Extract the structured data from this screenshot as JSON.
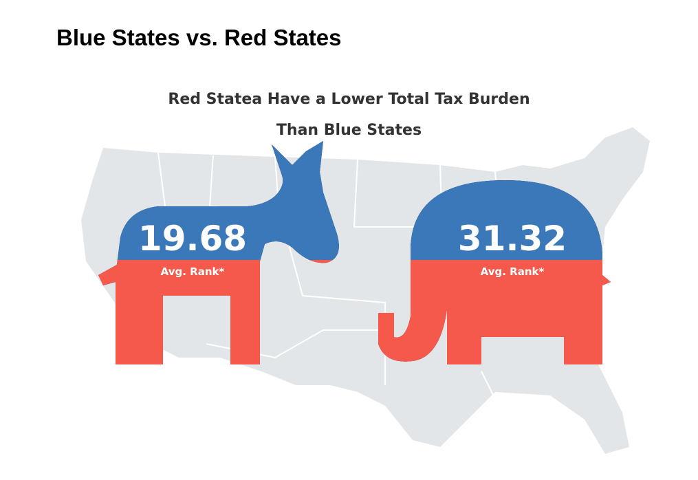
{
  "page": {
    "heading": "Blue States vs. Red States"
  },
  "infographic": {
    "title_line1": "Red Statea Have a Lower Total Tax Burden",
    "title_line2": "Than Blue States",
    "blue_states": {
      "value": "19.68",
      "label": "Avg. Rank*",
      "party_icon": "donkey-icon"
    },
    "red_states": {
      "value": "31.32",
      "label": "Avg. Rank*",
      "party_icon": "elephant-icon"
    },
    "colors": {
      "blue": "#3a78b9",
      "red": "#f4594c",
      "map": "#e3e6e8"
    }
  }
}
